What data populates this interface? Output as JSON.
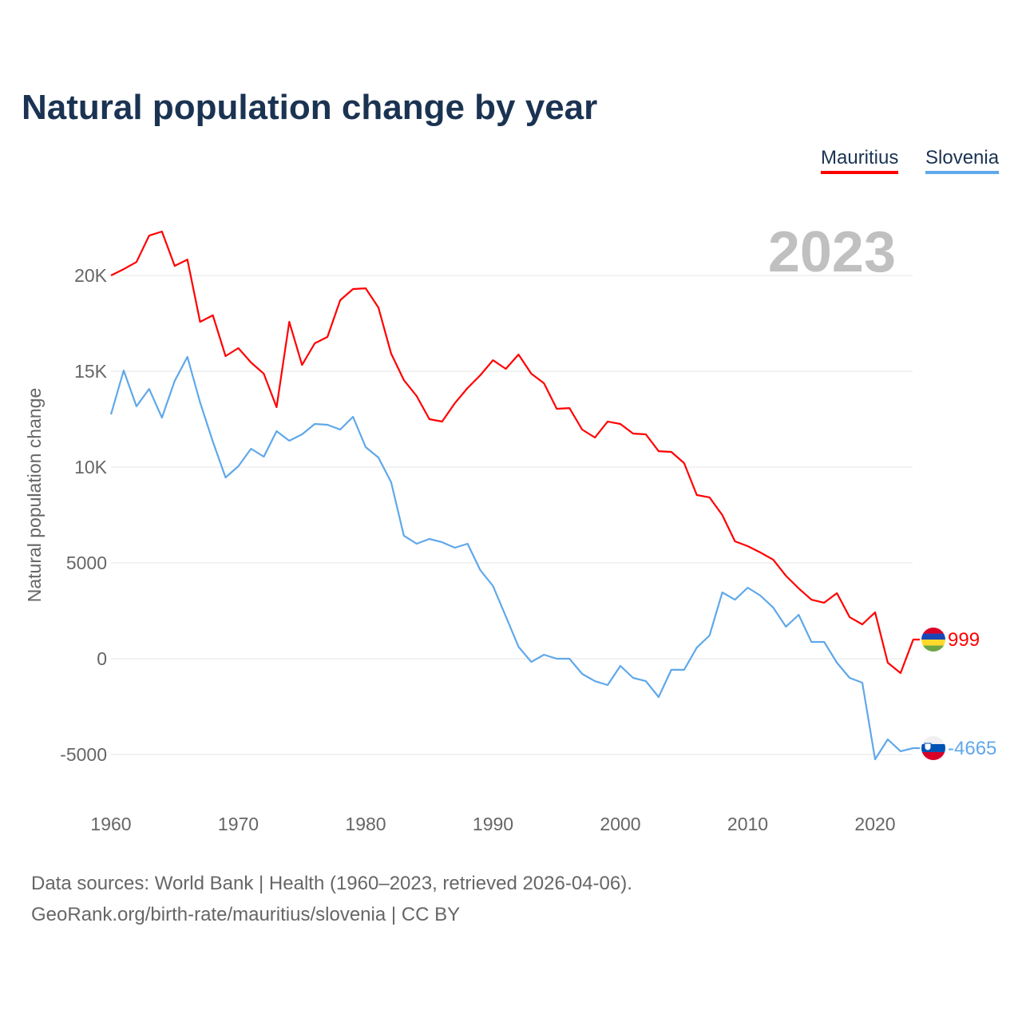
{
  "title": "Natural population change by year",
  "legend": [
    {
      "name": "Mauritius",
      "color": "#ff0000"
    },
    {
      "name": "Slovenia",
      "color": "#5fa8ea"
    }
  ],
  "source_line1": "Data sources: World Bank | Health (1960–2023, retrieved 2026-04-06).",
  "source_line2": "GeoRank.org/birth-rate/mauritius/slovenia | CC BY",
  "chart_data": {
    "type": "line",
    "title": "Natural population change by year",
    "xlabel": "",
    "ylabel": "Natural population change",
    "year_label": "2023",
    "xlim": [
      1960,
      2023
    ],
    "ylim": [
      -7000,
      22500
    ],
    "xticks": [
      "1960",
      "1970",
      "1980",
      "1990",
      "2000",
      "2010",
      "2020"
    ],
    "yticks": [
      {
        "v": 20000,
        "label": "20K"
      },
      {
        "v": 15000,
        "label": "15K"
      },
      {
        "v": 10000,
        "label": "10K"
      },
      {
        "v": 5000,
        "label": "5000"
      },
      {
        "v": 0,
        "label": "0"
      },
      {
        "v": -5000,
        "label": "-5000"
      }
    ],
    "grid": true,
    "legend_position": "top-right",
    "x_start": 1960,
    "series": [
      {
        "name": "Mauritius",
        "color": "#ff0000",
        "end_label": "999",
        "flag": "mauritius-flag",
        "values": [
          20000,
          20330,
          20700,
          22080,
          22290,
          20500,
          20830,
          17580,
          17920,
          15790,
          16210,
          15460,
          14870,
          13125,
          17580,
          15330,
          16460,
          16790,
          18710,
          19290,
          19330,
          18330,
          15920,
          14540,
          13710,
          12500,
          12375,
          13330,
          14125,
          14790,
          15580,
          15125,
          15875,
          14875,
          14375,
          13040,
          13080,
          11960,
          11540,
          12375,
          12250,
          11750,
          11710,
          10830,
          10790,
          10210,
          8540,
          8420,
          7500,
          6125,
          5875,
          5540,
          5170,
          4330,
          3670,
          3080,
          2920,
          3420,
          2170,
          1790,
          2420,
          -210,
          -750,
          999
        ]
      },
      {
        "name": "Slovenia",
        "color": "#5fa8ea",
        "end_label": "-4665",
        "flag": "slovenia-flag",
        "values": [
          12750,
          15040,
          13170,
          14080,
          12580,
          14500,
          15750,
          13375,
          11330,
          9460,
          10040,
          10960,
          10540,
          11875,
          11375,
          11710,
          12250,
          12210,
          11960,
          12625,
          11040,
          10500,
          9210,
          6420,
          6000,
          6250,
          6080,
          5790,
          6000,
          4625,
          3790,
          2210,
          625,
          -170,
          210,
          0,
          0,
          -790,
          -1170,
          -1375,
          -375,
          -1000,
          -1170,
          -2000,
          -580,
          -580,
          580,
          1210,
          3460,
          3080,
          3710,
          3290,
          2670,
          1670,
          2290,
          875,
          875,
          -210,
          -1000,
          -1250,
          -5250,
          -4210,
          -4830,
          -4665
        ]
      }
    ]
  }
}
